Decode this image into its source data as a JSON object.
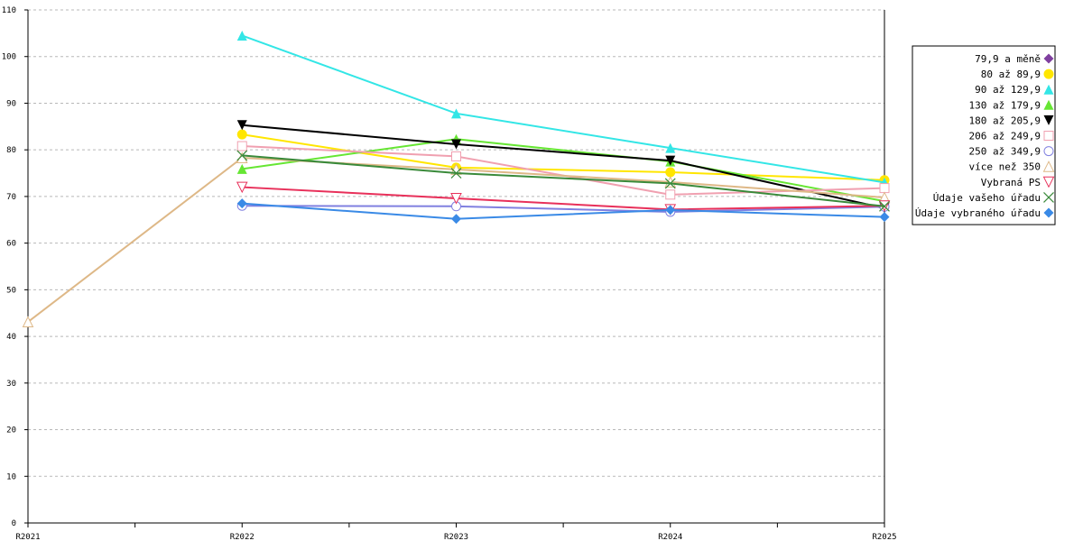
{
  "chart_data": {
    "type": "line",
    "title": "",
    "xlabel": "",
    "ylabel": "",
    "categories": [
      "R2021",
      "R2022",
      "R2023",
      "R2024",
      "R2025"
    ],
    "ylim": [
      0,
      110
    ],
    "yticks": [
      0,
      10,
      20,
      30,
      40,
      50,
      60,
      70,
      80,
      90,
      100,
      110
    ],
    "grid": "horizontal dashed",
    "legend_position": "right",
    "series": [
      {
        "name": "79,9 a měně",
        "color": "#7f3f9f",
        "marker": "diamond",
        "values": [
          null,
          null,
          null,
          null,
          null
        ]
      },
      {
        "name": "80 až 89,9",
        "color": "#ffe600",
        "marker": "circle",
        "values": [
          null,
          83.3,
          76.2,
          75.2,
          73.5
        ]
      },
      {
        "name": "90 až 129,9",
        "color": "#33e6e6",
        "marker": "triangle-up",
        "values": [
          null,
          104.5,
          87.8,
          80.4,
          73.0
        ]
      },
      {
        "name": "130 až 179,9",
        "color": "#66e633",
        "marker": "triangle-up",
        "values": [
          null,
          75.9,
          82.3,
          77.5,
          69.0
        ]
      },
      {
        "name": "180 až 205,9",
        "color": "#000000",
        "marker": "triangle-down",
        "values": [
          null,
          85.3,
          81.2,
          77.7,
          67.5
        ]
      },
      {
        "name": "206 až 249,9",
        "color": "#f0a0b0",
        "marker": "square-open",
        "values": [
          null,
          80.8,
          78.6,
          70.4,
          71.8
        ]
      },
      {
        "name": "250 až 349,9",
        "color": "#8080e0",
        "marker": "circle-open",
        "values": [
          null,
          68.0,
          67.9,
          66.7,
          67.8
        ]
      },
      {
        "name": "více než 350",
        "color": "#deb887",
        "marker": "triangle-up-open",
        "values": [
          43.1,
          78.3,
          75.8,
          73.1,
          69.8
        ]
      },
      {
        "name": "Vybraná PS",
        "color": "#e8305a",
        "marker": "triangle-down-open",
        "values": [
          null,
          72.0,
          69.6,
          67.2,
          68.0
        ]
      },
      {
        "name": "Údaje vašeho úřadu",
        "color": "#3a8a3a",
        "marker": "x",
        "values": [
          null,
          78.8,
          75.0,
          72.8,
          67.9
        ]
      },
      {
        "name": "Údaje vybraného úřadu",
        "color": "#3a8ae6",
        "marker": "diamond",
        "values": [
          null,
          68.5,
          65.2,
          67.1,
          65.6
        ]
      }
    ]
  }
}
